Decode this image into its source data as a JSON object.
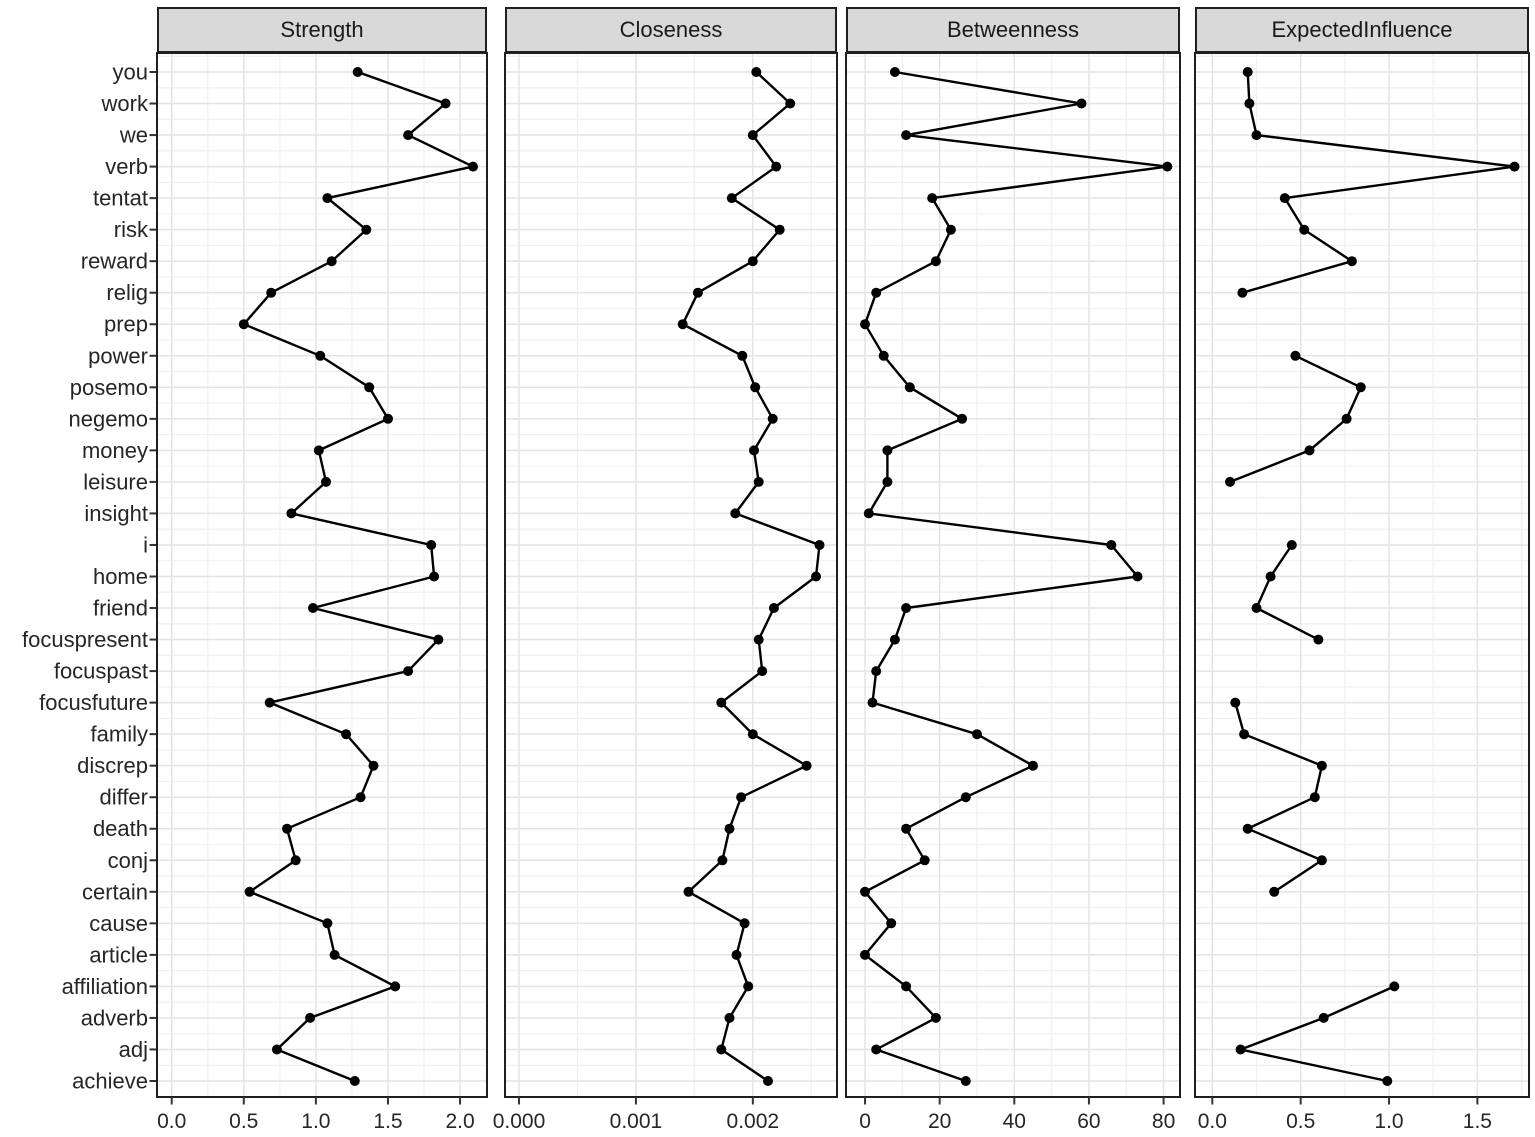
{
  "chart_data": {
    "type": "line",
    "title": "",
    "xlabel": "",
    "ylabel": "",
    "orientation": "horizontal_categorical",
    "legend": "none",
    "grid": "on",
    "note": "Faceted centrality plot; points connected vertically per facet; gaps where value missing",
    "categories": [
      "you",
      "work",
      "we",
      "verb",
      "tentat",
      "risk",
      "reward",
      "relig",
      "prep",
      "power",
      "posemo",
      "negemo",
      "money",
      "leisure",
      "insight",
      "i",
      "home",
      "friend",
      "focuspresent",
      "focuspast",
      "focusfuture",
      "family",
      "discrep",
      "differ",
      "death",
      "conj",
      "certain",
      "cause",
      "article",
      "affiliation",
      "adverb",
      "adj",
      "achieve"
    ],
    "facets": [
      {
        "title": "Strength",
        "xlim": [
          -0.102,
          2.187
        ],
        "x_ticks": [
          0.0,
          0.5,
          1.0,
          1.5,
          2.0
        ],
        "x_tick_labels": [
          "0.0",
          "0.5",
          "1.0",
          "1.5",
          "2.0"
        ],
        "x_minor": [
          0.25,
          0.75,
          1.25,
          1.75
        ],
        "values": [
          1.29,
          1.9,
          1.64,
          2.09,
          1.08,
          1.35,
          1.11,
          0.69,
          0.5,
          1.03,
          1.37,
          1.5,
          1.02,
          1.07,
          0.83,
          1.8,
          1.82,
          0.98,
          1.85,
          1.64,
          0.68,
          1.21,
          1.4,
          1.31,
          0.8,
          0.86,
          0.54,
          1.08,
          1.13,
          1.55,
          0.96,
          0.73,
          1.27
        ]
      },
      {
        "title": "Closeness",
        "xlim": [
          -0.00012,
          0.00272
        ],
        "x_ticks": [
          0.0,
          0.001,
          0.002
        ],
        "x_tick_labels": [
          "0.000",
          "0.001",
          "0.002"
        ],
        "x_minor": [
          0.0005,
          0.0015,
          0.0025
        ],
        "values": [
          0.00203,
          0.00232,
          0.002,
          0.0022,
          0.00182,
          0.00223,
          0.002,
          0.00153,
          0.0014,
          0.00191,
          0.00202,
          0.00217,
          0.00201,
          0.00205,
          0.00185,
          0.00257,
          0.00254,
          0.00218,
          0.00205,
          0.00208,
          0.00173,
          0.002,
          0.00246,
          0.0019,
          0.0018,
          0.00174,
          0.00145,
          0.00193,
          0.00186,
          0.00196,
          0.0018,
          0.00173,
          0.00213
        ]
      },
      {
        "title": "Betweenness",
        "xlim": [
          -5.1,
          84.4
        ],
        "x_ticks": [
          0,
          20,
          40,
          60,
          80
        ],
        "x_tick_labels": [
          "0",
          "20",
          "40",
          "60",
          "80"
        ],
        "x_minor": [
          10,
          30,
          50,
          70
        ],
        "values": [
          8,
          58,
          11,
          81,
          18,
          23,
          19,
          3,
          0,
          5,
          12,
          26,
          6,
          6,
          1,
          66,
          73,
          11,
          8,
          3,
          2,
          30,
          45,
          27,
          11,
          16,
          0,
          7,
          0,
          11,
          19,
          3,
          27
        ]
      },
      {
        "title": "ExpectedInfluence",
        "xlim": [
          -0.098,
          1.792
        ],
        "x_ticks": [
          0.0,
          0.5,
          1.0,
          1.5
        ],
        "x_tick_labels": [
          "0.0",
          "0.5",
          "1.0",
          "1.5"
        ],
        "x_minor": [
          0.25,
          0.75,
          1.25,
          1.75
        ],
        "values": [
          0.2,
          0.21,
          0.25,
          1.71,
          0.41,
          0.52,
          0.79,
          0.17,
          null,
          0.47,
          0.84,
          0.76,
          0.55,
          0.1,
          null,
          0.45,
          0.33,
          0.25,
          0.6,
          null,
          0.13,
          0.18,
          0.62,
          0.58,
          0.2,
          0.62,
          0.35,
          null,
          null,
          1.03,
          0.63,
          0.16,
          0.99
        ]
      }
    ],
    "style": {
      "point_color": "#000000",
      "line_color": "#000000",
      "strip_fill": "#D9D9D9",
      "strip_text": "#1A1A1A",
      "panel_border": "#1F1F1F",
      "grid_major": "#E4E4E4",
      "grid_minor": "#F1F1F1",
      "tick_color": "#333333",
      "axis_text": "#262626",
      "background": "#FFFFFF"
    }
  }
}
